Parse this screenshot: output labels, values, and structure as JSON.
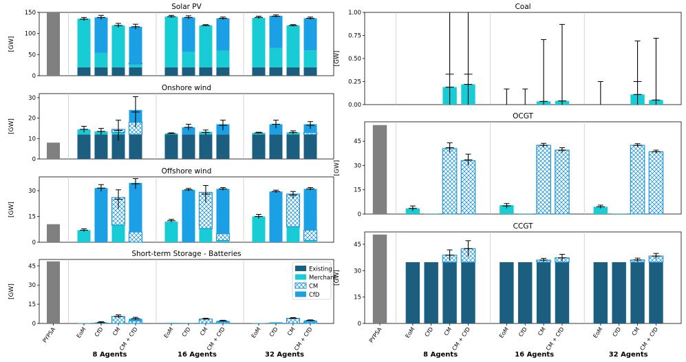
{
  "chart_data": [
    {
      "type": "bar",
      "id": "solar",
      "title": "Solar PV",
      "ylabel": "[GW]",
      "ylim": [
        0,
        150
      ],
      "yticks": [
        0,
        50,
        100,
        150
      ],
      "categories": [
        "PYPSA",
        "EoM",
        "CfD",
        "CM",
        "CM + CfD",
        "EoM",
        "CfD",
        "CM",
        "CM + CfD",
        "EoM",
        "CfD",
        "CM",
        "CM + CfD"
      ],
      "series": [
        {
          "name": "Existing",
          "values": [
            0,
            20,
            20,
            20,
            20,
            20,
            20,
            20,
            20,
            20,
            20,
            20,
            20
          ]
        },
        {
          "name": "Merchant",
          "values": [
            0,
            115,
            34,
            99,
            8,
            120,
            37,
            99,
            39,
            117,
            46,
            99,
            40
          ]
        },
        {
          "name": "CM",
          "values": [
            0,
            0,
            0,
            0,
            2,
            0,
            0,
            0,
            0,
            0,
            0,
            0,
            0
          ]
        },
        {
          "name": "CfD",
          "values": [
            0,
            0,
            84,
            0,
            86,
            0,
            81,
            0,
            77,
            0,
            76,
            0,
            76
          ]
        },
        {
          "name": "PYPSA",
          "values": [
            156,
            0,
            0,
            0,
            0,
            0,
            0,
            0,
            0,
            0,
            0,
            0,
            0
          ]
        }
      ],
      "errors": [
        [
          0,
          0
        ],
        [
          134,
          4
        ],
        [
          138,
          5
        ],
        [
          119,
          5
        ],
        [
          116,
          6
        ],
        [
          140,
          3
        ],
        [
          138,
          4
        ],
        [
          119,
          2
        ],
        [
          136,
          3
        ],
        [
          138,
          3
        ],
        [
          141,
          3
        ],
        [
          119,
          2
        ],
        [
          136,
          3
        ]
      ]
    },
    {
      "type": "bar",
      "id": "onshore",
      "title": "Onshore wind",
      "ylabel": "[GW]",
      "ylim": [
        0,
        32
      ],
      "yticks": [
        0,
        10,
        20,
        30
      ],
      "categories": [
        "PYPSA",
        "EoM",
        "CfD",
        "CM",
        "CM + CfD",
        "EoM",
        "CfD",
        "CM",
        "CM + CfD",
        "EoM",
        "CfD",
        "CM",
        "CM + CfD"
      ],
      "series": [
        {
          "name": "Existing",
          "values": [
            0,
            12,
            12,
            12,
            12,
            12,
            12,
            12,
            12,
            12,
            12,
            12,
            12
          ]
        },
        {
          "name": "Merchant",
          "values": [
            0,
            2.5,
            1.5,
            1,
            0,
            0.5,
            0,
            1.3,
            0,
            0.8,
            0,
            1,
            0
          ]
        },
        {
          "name": "CM",
          "values": [
            0,
            0,
            0,
            1.5,
            6,
            0,
            0,
            0,
            0,
            0,
            0,
            0,
            1
          ]
        },
        {
          "name": "CfD",
          "values": [
            0,
            0,
            0,
            0,
            6,
            0,
            3.5,
            0,
            5,
            0,
            5,
            0,
            4
          ]
        },
        {
          "name": "PYPSA",
          "values": [
            8,
            0,
            0,
            0,
            0,
            0,
            0,
            0,
            0,
            0,
            0,
            0,
            0
          ]
        }
      ],
      "errors": [
        [
          0,
          0
        ],
        [
          14.5,
          1.5
        ],
        [
          13.5,
          1.5
        ],
        [
          14,
          5
        ],
        [
          23,
          7.5
        ],
        [
          12.5,
          0.3
        ],
        [
          15.5,
          1.5
        ],
        [
          13,
          1.2
        ],
        [
          16.5,
          2.5
        ],
        [
          12.8,
          0.3
        ],
        [
          17,
          2
        ],
        [
          13,
          0.8
        ],
        [
          16.5,
          1.8
        ]
      ]
    },
    {
      "type": "bar",
      "id": "offshore",
      "title": "Offshore wind",
      "ylabel": "[GW]",
      "ylim": [
        0,
        38
      ],
      "yticks": [
        0,
        15,
        30
      ],
      "categories": [
        "PYPSA",
        "EoM",
        "CfD",
        "CM",
        "CM + CfD",
        "EoM",
        "CfD",
        "CM",
        "CM + CfD",
        "EoM",
        "CfD",
        "CM",
        "CM + CfD"
      ],
      "series": [
        {
          "name": "Existing",
          "values": [
            0,
            0,
            0,
            0,
            0,
            0,
            0,
            0,
            0,
            0,
            0,
            0,
            0
          ]
        },
        {
          "name": "Merchant",
          "values": [
            0,
            7,
            0,
            10,
            0,
            12,
            0,
            8,
            1,
            15,
            0,
            9,
            1
          ]
        },
        {
          "name": "CM",
          "values": [
            0,
            0,
            0,
            16,
            6,
            0,
            0,
            21,
            4,
            0,
            0,
            19,
            6
          ]
        },
        {
          "name": "CfD",
          "values": [
            0,
            0,
            31.5,
            0,
            28.5,
            0,
            30.5,
            0,
            26,
            0,
            29.5,
            0,
            24
          ]
        },
        {
          "name": "PYPSA",
          "values": [
            10.5,
            0,
            0,
            0,
            0,
            0,
            0,
            0,
            0,
            0,
            0,
            0,
            0
          ]
        }
      ],
      "errors": [
        [
          0,
          0
        ],
        [
          7,
          0.8
        ],
        [
          31.5,
          2
        ],
        [
          25,
          5.5
        ],
        [
          34,
          3
        ],
        [
          12.5,
          0.8
        ],
        [
          30.5,
          0.8
        ],
        [
          28,
          5
        ],
        [
          31,
          0.8
        ],
        [
          15,
          1.2
        ],
        [
          29.5,
          0.8
        ],
        [
          27.5,
          2
        ],
        [
          31,
          0.8
        ]
      ]
    },
    {
      "type": "bar",
      "id": "batteries",
      "title": "Short-term Storage - Batteries",
      "ylabel": "[GW]",
      "ylim": [
        0,
        50
      ],
      "yticks": [
        0,
        15,
        30,
        45
      ],
      "categories": [
        "PYPSA",
        "EoM",
        "CfD",
        "CM",
        "CM + CfD",
        "EoM",
        "CfD",
        "CM",
        "CM + CfD",
        "EoM",
        "CfD",
        "CM",
        "CM + CfD"
      ],
      "series": [
        {
          "name": "Existing",
          "values": [
            0,
            0,
            0,
            0,
            0,
            0,
            0,
            0,
            0,
            0,
            0,
            0,
            0
          ]
        },
        {
          "name": "Merchant",
          "values": [
            0,
            0.3,
            0.2,
            0,
            0,
            0.5,
            0.2,
            0,
            0,
            0.3,
            0.3,
            0,
            0
          ]
        },
        {
          "name": "CM",
          "values": [
            0,
            0,
            0,
            5.5,
            2,
            0,
            0,
            3.5,
            1,
            0,
            0,
            4,
            1
          ]
        },
        {
          "name": "CfD",
          "values": [
            0,
            0,
            0.6,
            0,
            1.8,
            0,
            0.2,
            0,
            1,
            0,
            0.6,
            0,
            1.4
          ]
        },
        {
          "name": "PYPSA",
          "values": [
            48.5,
            0,
            0,
            0,
            0,
            0,
            0,
            0,
            0,
            0,
            0,
            0,
            0
          ]
        }
      ],
      "errors": [
        [
          0,
          0
        ],
        [
          0,
          0
        ],
        [
          0.8,
          0.6
        ],
        [
          5.5,
          1.2
        ],
        [
          3.8,
          1
        ],
        [
          0,
          0
        ],
        [
          0,
          0
        ],
        [
          3.5,
          0.6
        ],
        [
          2,
          0.5
        ],
        [
          0,
          0
        ],
        [
          0,
          0
        ],
        [
          4,
          0.6
        ],
        [
          2.4,
          0.4
        ]
      ]
    },
    {
      "type": "bar",
      "id": "coal",
      "title": "Coal",
      "ylabel": "[GW]",
      "ylim": [
        0,
        1
      ],
      "yticks": [
        0,
        0.25,
        0.5,
        0.75,
        1
      ],
      "ytick_labels": [
        "0.00",
        "0.25",
        "0.50",
        "0.75",
        "1.00"
      ],
      "categories": [
        "PYPSA",
        "EoM",
        "CfD",
        "CM",
        "CM + CfD",
        "EoM",
        "CfD",
        "CM",
        "CM + CfD",
        "EoM",
        "CfD",
        "CM",
        "CM + CfD"
      ],
      "series": [
        {
          "name": "Existing",
          "values": [
            0,
            0,
            0,
            0,
            0,
            0,
            0,
            0,
            0,
            0,
            0,
            0,
            0
          ]
        },
        {
          "name": "Merchant",
          "values": [
            0,
            0,
            0,
            0.19,
            0.22,
            0,
            0,
            0.035,
            0.04,
            0,
            0,
            0.11,
            0.05
          ]
        },
        {
          "name": "CM",
          "values": [
            0,
            0,
            0,
            0,
            0,
            0,
            0,
            0,
            0,
            0,
            0,
            0,
            0
          ]
        },
        {
          "name": "CfD",
          "values": [
            0,
            0,
            0,
            0,
            0,
            0,
            0,
            0,
            0,
            0,
            0,
            0,
            0
          ]
        },
        {
          "name": "PYPSA",
          "values": [
            0,
            0,
            0,
            0,
            0,
            0,
            0,
            0,
            0,
            0,
            0,
            0,
            0
          ]
        }
      ],
      "errors": [
        [
          0,
          0
        ],
        [
          0,
          0
        ],
        [
          0,
          0
        ],
        [
          0.19,
          1.2,
          0.33
        ],
        [
          0.22,
          1.2,
          0.33
        ],
        [
          0,
          0.17
        ],
        [
          0,
          0.17
        ],
        [
          0.035,
          0.67
        ],
        [
          0.04,
          0.83
        ],
        [
          0,
          0.25
        ],
        [
          0,
          0
        ],
        [
          0.11,
          0.58,
          0.25
        ],
        [
          0.05,
          0.67
        ]
      ]
    },
    {
      "type": "bar",
      "id": "ocgt",
      "title": "OCGT",
      "ylabel": "[GW]",
      "ylim": [
        0,
        57
      ],
      "yticks": [
        0,
        15,
        30,
        45
      ],
      "categories": [
        "PYPSA",
        "EoM",
        "CfD",
        "CM",
        "CM + CfD",
        "EoM",
        "CfD",
        "CM",
        "CM + CfD",
        "EoM",
        "CfD",
        "CM",
        "CM + CfD"
      ],
      "series": [
        {
          "name": "Existing",
          "values": [
            0,
            0,
            0,
            0,
            0,
            0,
            0,
            0,
            0,
            0,
            0,
            0,
            0
          ]
        },
        {
          "name": "Merchant",
          "values": [
            0,
            3.5,
            0.3,
            0,
            0,
            5.5,
            0.3,
            0,
            0,
            4.5,
            0.3,
            0,
            0
          ]
        },
        {
          "name": "CM",
          "values": [
            0,
            0,
            0,
            40.5,
            33,
            0,
            0,
            42.5,
            39.5,
            0,
            0,
            42.5,
            38.5
          ]
        },
        {
          "name": "CfD",
          "values": [
            0,
            0,
            0,
            0,
            0,
            0,
            0,
            0,
            0,
            0,
            0,
            0,
            0
          ]
        },
        {
          "name": "PYPSA",
          "values": [
            55,
            0,
            0,
            0,
            0,
            0,
            0,
            0,
            0,
            0,
            0,
            0,
            0
          ]
        }
      ],
      "errors": [
        [
          0,
          0
        ],
        [
          3.5,
          1.5
        ],
        [
          0,
          0
        ],
        [
          41,
          3
        ],
        [
          33.5,
          3.5
        ],
        [
          5,
          1.5
        ],
        [
          0,
          0
        ],
        [
          42.5,
          1.2
        ],
        [
          39.5,
          1.5
        ],
        [
          4.5,
          1
        ],
        [
          0,
          0
        ],
        [
          42.5,
          1
        ],
        [
          38.5,
          1
        ]
      ]
    },
    {
      "type": "bar",
      "id": "ccgt",
      "title": "CCGT",
      "ylabel": "[GW]",
      "ylim": [
        0,
        52
      ],
      "yticks": [
        0,
        15,
        30,
        45
      ],
      "categories": [
        "PYPSA",
        "EoM",
        "CfD",
        "CM",
        "CM + CfD",
        "EoM",
        "CfD",
        "CM",
        "CM + CfD",
        "EoM",
        "CfD",
        "CM",
        "CM + CfD"
      ],
      "series": [
        {
          "name": "Existing",
          "values": [
            0,
            34.8,
            34.8,
            34.8,
            34.8,
            34.8,
            34.8,
            34.8,
            34.8,
            34.8,
            34.8,
            34.8,
            34.8
          ]
        },
        {
          "name": "Merchant",
          "values": [
            0,
            0,
            0,
            0,
            0,
            0,
            0,
            0,
            0,
            0,
            0,
            0,
            0
          ]
        },
        {
          "name": "CM",
          "values": [
            0,
            0,
            0,
            4,
            7.7,
            0,
            0,
            1.2,
            2.5,
            0,
            0,
            1.3,
            3.5
          ]
        },
        {
          "name": "CfD",
          "values": [
            0,
            0,
            0,
            0,
            0,
            0,
            0,
            0,
            0,
            0,
            0,
            0,
            0
          ]
        },
        {
          "name": "PYPSA",
          "values": [
            50.5,
            0,
            0,
            0,
            0,
            0,
            0,
            0,
            0,
            0,
            0,
            0,
            0
          ]
        }
      ],
      "errors": [
        [
          0,
          0
        ],
        [
          0,
          0
        ],
        [
          0,
          0
        ],
        [
          38.8,
          3
        ],
        [
          42.5,
          4.5
        ],
        [
          0,
          0
        ],
        [
          0,
          0
        ],
        [
          36,
          1
        ],
        [
          37.3,
          2
        ],
        [
          0,
          0
        ],
        [
          0,
          0
        ],
        [
          36.1,
          1
        ],
        [
          38.3,
          1.5
        ]
      ]
    }
  ],
  "x_axis": {
    "categories": [
      "PYPSA",
      "EoM",
      "CfD",
      "CM",
      "CM + CfD",
      "EoM",
      "CfD",
      "CM",
      "CM + CfD",
      "EoM",
      "CfD",
      "CM",
      "CM + CfD"
    ],
    "groups": [
      "8 Agents",
      "16 Agents",
      "32 Agents"
    ]
  },
  "legend": {
    "placement": "top-right of batteries panel",
    "items": [
      {
        "name": "Existing",
        "color": "#1b5e80"
      },
      {
        "name": "Merchant",
        "color": "#17ccd4"
      },
      {
        "name": "CM",
        "color": "#2196d6",
        "pattern": "hatch"
      },
      {
        "name": "CfD",
        "color": "#1ba0e6"
      }
    ]
  },
  "colors": {
    "existing": "#1b5e80",
    "merchant": "#17ccd4",
    "cm": "#2196d6",
    "cfd": "#1ba0e6",
    "pypsa": "#808080",
    "error_bar": "#000000"
  }
}
